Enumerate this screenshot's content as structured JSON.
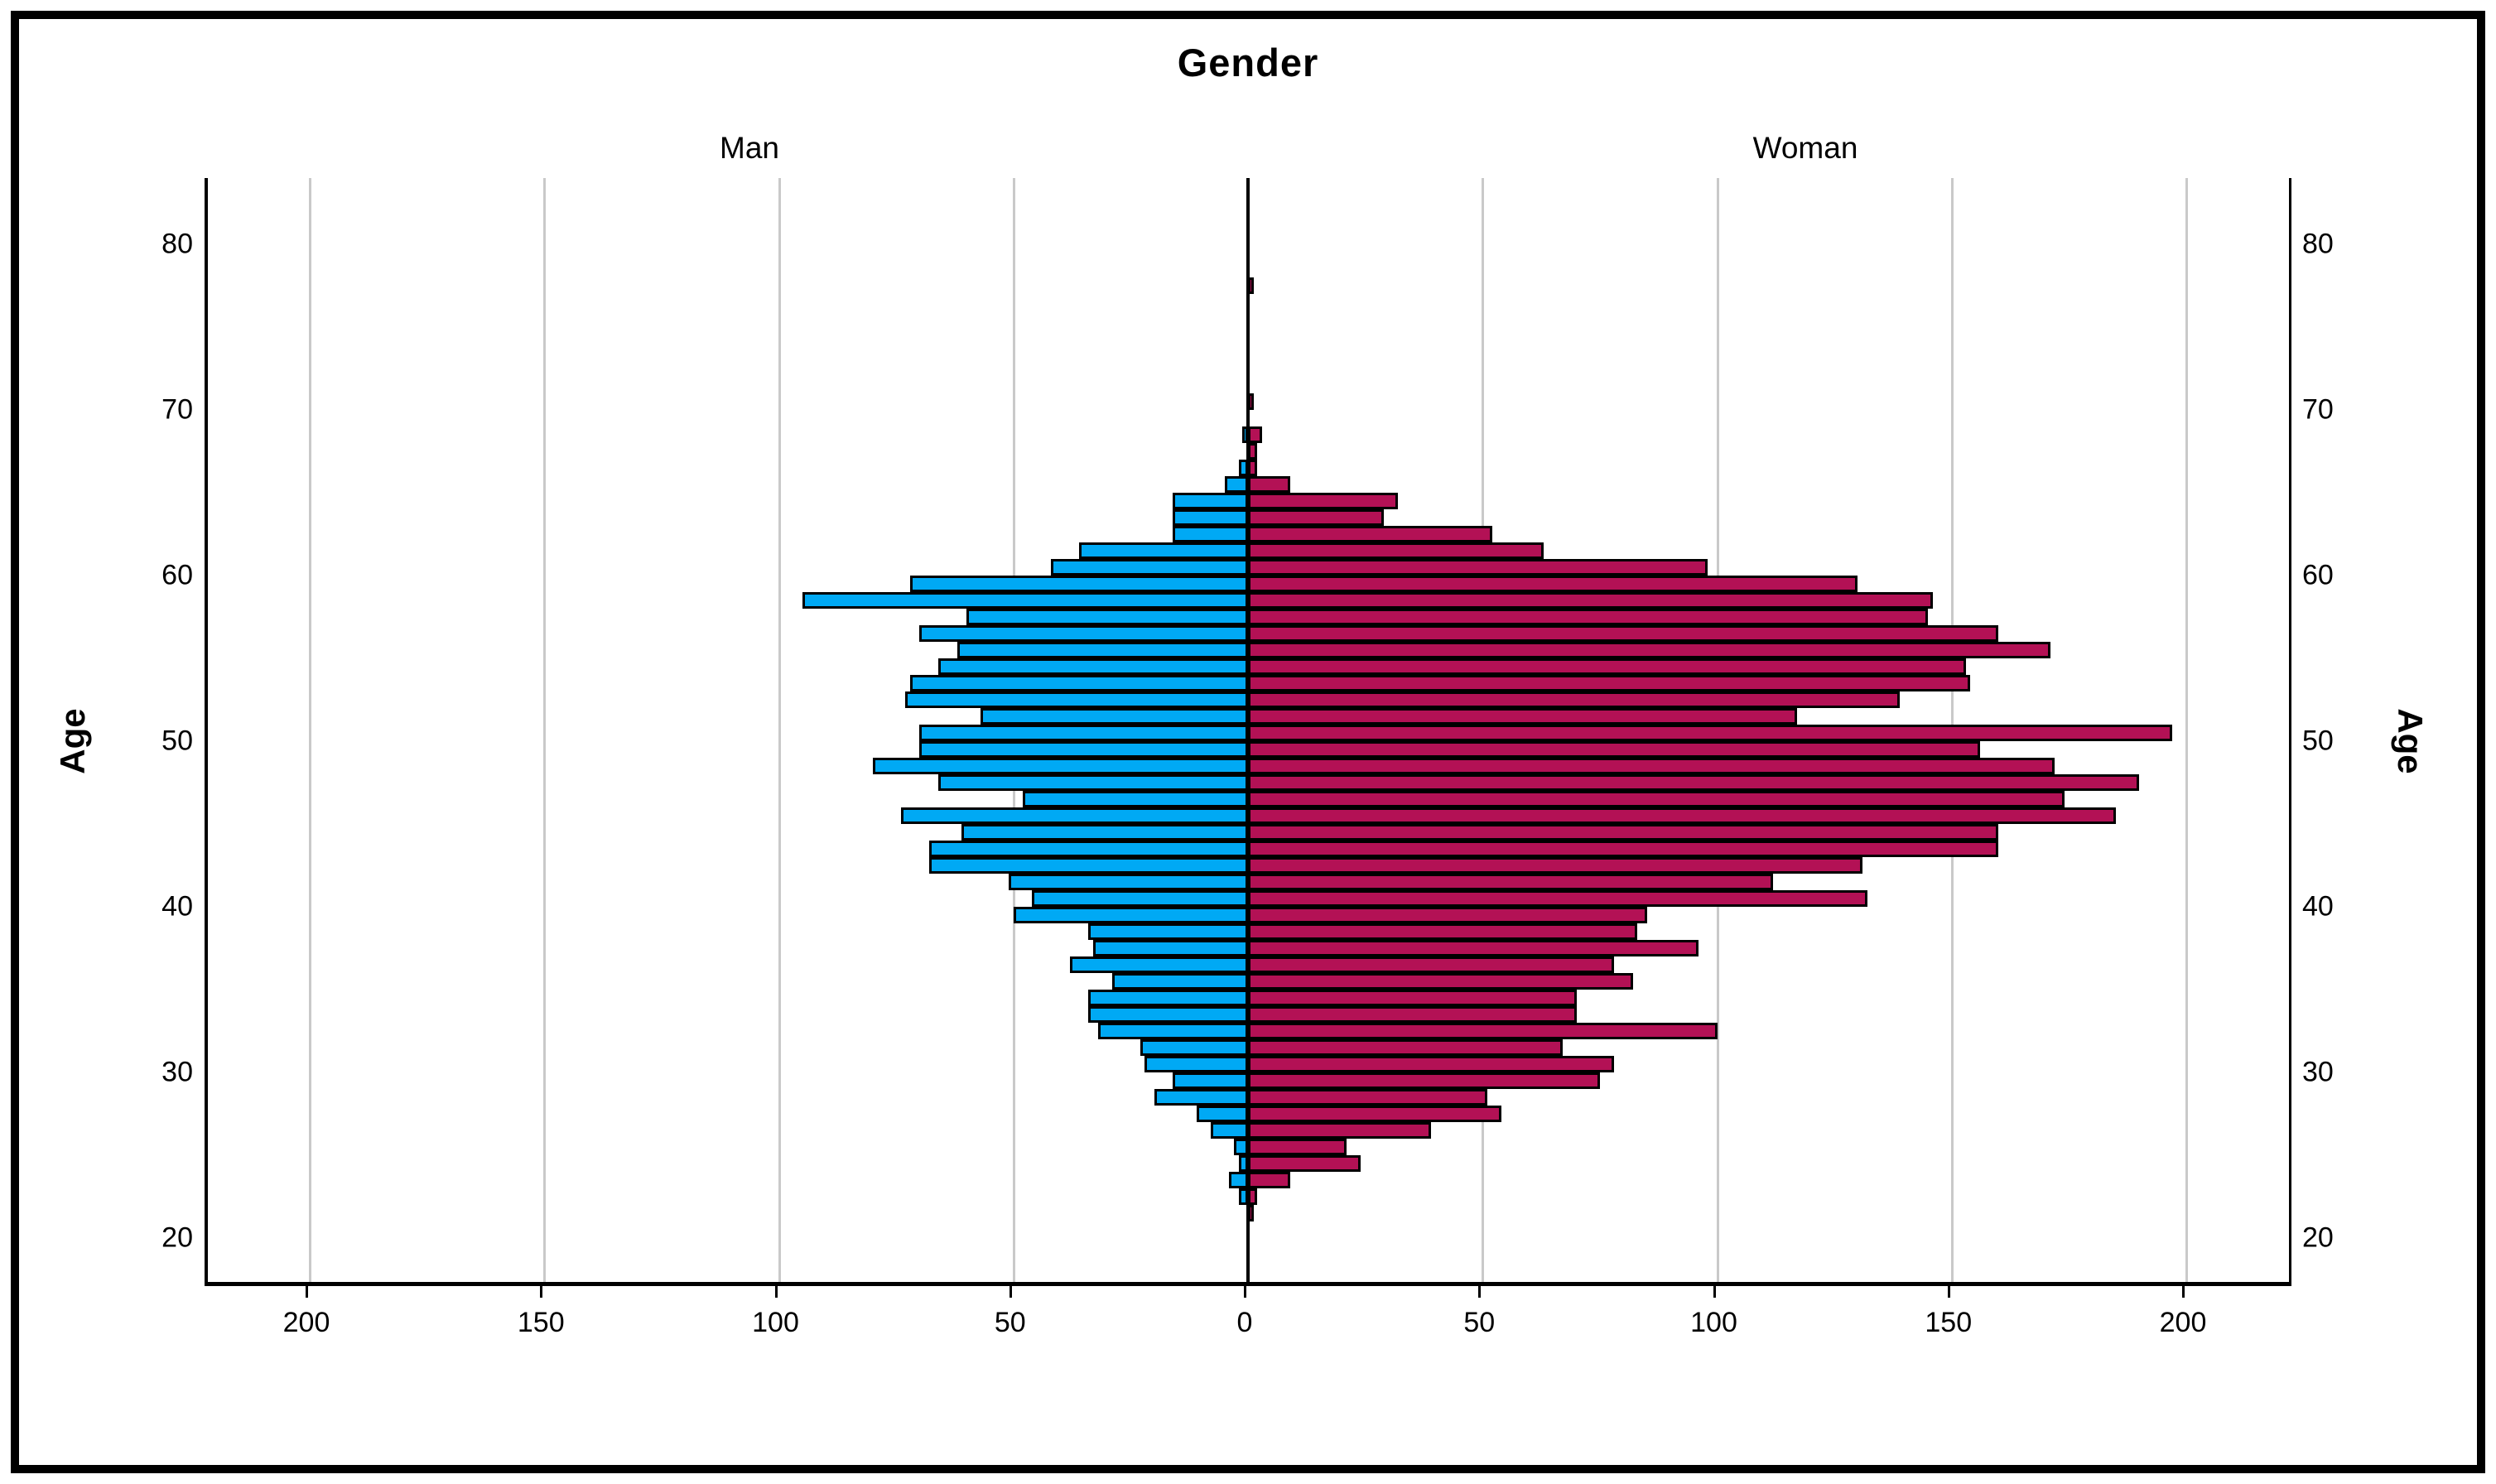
{
  "title": "Gender",
  "panel_labels": {
    "left": "Man",
    "right": "Woman"
  },
  "axis": {
    "age_label": "Age",
    "age_tick_values": [
      80,
      70,
      60,
      50,
      40,
      30,
      20
    ],
    "count_tick_values": [
      200,
      150,
      100,
      50,
      0,
      50,
      100,
      150,
      200
    ]
  },
  "colors": {
    "man_bar": "#00A9F4",
    "woman_bar": "#B31155",
    "gridline": "#C9C9C9",
    "axis": "#000000",
    "background": "#FFFFFF"
  },
  "chart_data": {
    "type": "bar",
    "subtype": "population-pyramid",
    "title": "Gender",
    "ylabel": "Age",
    "legend_position": "top (Man left, Woman right)",
    "grid": true,
    "x_ticks_per_side": [
      0,
      50,
      100,
      150,
      200
    ],
    "xlim_per_side": [
      0,
      222
    ],
    "age_axis_ticks": [
      20,
      30,
      40,
      50,
      60,
      70,
      80
    ],
    "ylim": [
      16,
      84
    ],
    "bin_width_years": 1,
    "ages": [
      20,
      21,
      22,
      23,
      24,
      25,
      26,
      27,
      28,
      29,
      30,
      31,
      32,
      33,
      34,
      35,
      36,
      37,
      38,
      39,
      40,
      41,
      42,
      43,
      44,
      45,
      46,
      47,
      48,
      49,
      50,
      51,
      52,
      53,
      54,
      55,
      56,
      57,
      58,
      59,
      60,
      61,
      62,
      63,
      64,
      65,
      66,
      67,
      68,
      69,
      70,
      71,
      72,
      73,
      74,
      75,
      76,
      77
    ],
    "series": [
      {
        "name": "Man",
        "side": "left",
        "color": "#00A9F4",
        "values": [
          0,
          0,
          2,
          4,
          2,
          3,
          8,
          11,
          20,
          16,
          22,
          23,
          32,
          34,
          34,
          29,
          38,
          33,
          34,
          50,
          46,
          51,
          68,
          68,
          61,
          74,
          48,
          66,
          80,
          70,
          70,
          57,
          73,
          72,
          66,
          62,
          70,
          60,
          95,
          72,
          42,
          36,
          16,
          16,
          16,
          5,
          2,
          0,
          1,
          0,
          0,
          0,
          0,
          0,
          0,
          0,
          0,
          0
        ]
      },
      {
        "name": "Woman",
        "side": "right",
        "color": "#B31155",
        "values": [
          0,
          1,
          2,
          9,
          24,
          21,
          39,
          54,
          51,
          75,
          78,
          67,
          100,
          70,
          70,
          82,
          78,
          96,
          83,
          85,
          132,
          112,
          131,
          160,
          160,
          185,
          174,
          190,
          172,
          156,
          197,
          117,
          139,
          154,
          153,
          171,
          160,
          145,
          146,
          130,
          98,
          63,
          52,
          29,
          32,
          9,
          2,
          2,
          3,
          0,
          1,
          0,
          0,
          0,
          0,
          0,
          0,
          1
        ]
      }
    ]
  }
}
